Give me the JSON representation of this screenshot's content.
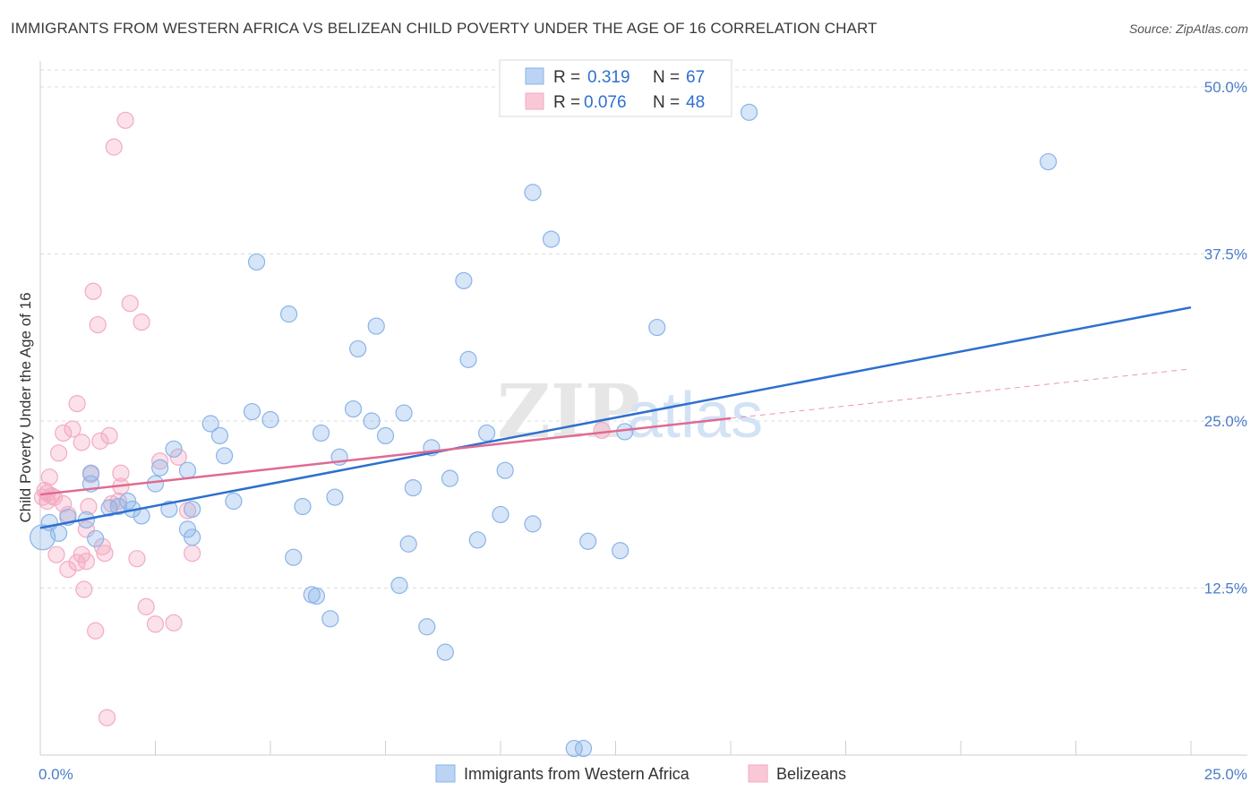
{
  "chart_data": {
    "type": "scatter",
    "title": "IMMIGRANTS FROM WESTERN AFRICA VS BELIZEAN CHILD POVERTY UNDER THE AGE OF 16 CORRELATION CHART",
    "source": "Source: ZipAtlas.com",
    "ylabel": "Child Poverty Under the Age of 16",
    "xlabel": "",
    "xlim": [
      0,
      25
    ],
    "ylim": [
      0,
      50
    ],
    "x_tick_labels": [
      "0.0%",
      "25.0%"
    ],
    "y_ticks": [
      12.5,
      25.0,
      37.5,
      50.0
    ],
    "y_tick_labels": [
      "12.5%",
      "25.0%",
      "37.5%",
      "50.0%"
    ],
    "watermark": {
      "zip": "ZIP",
      "atlas": "atlas"
    },
    "legend": {
      "r_label": "R =",
      "n_label": "N =",
      "entries": [
        {
          "r": "0.319",
          "n": "67"
        },
        {
          "r": "0.076",
          "n": "48"
        }
      ]
    },
    "series": [
      {
        "name": "Immigrants from Western Africa",
        "color": "#8ab4e8",
        "line_color": "#2e6fcf",
        "trend": {
          "x": [
            0,
            25
          ],
          "y": [
            17.0,
            33.5
          ]
        },
        "points": [
          [
            0.05,
            16.3
          ],
          [
            0.2,
            17.4
          ],
          [
            0.4,
            16.6
          ],
          [
            0.6,
            17.8
          ],
          [
            1.0,
            17.6
          ],
          [
            1.5,
            18.5
          ],
          [
            2.0,
            18.4
          ],
          [
            2.2,
            17.9
          ],
          [
            1.2,
            16.2
          ],
          [
            1.1,
            21.1
          ],
          [
            1.1,
            20.3
          ],
          [
            1.9,
            19.0
          ],
          [
            2.5,
            20.3
          ],
          [
            2.8,
            18.4
          ],
          [
            2.9,
            22.9
          ],
          [
            2.6,
            21.5
          ],
          [
            3.2,
            21.3
          ],
          [
            3.3,
            18.4
          ],
          [
            3.3,
            16.3
          ],
          [
            3.7,
            24.8
          ],
          [
            3.9,
            23.9
          ],
          [
            4.0,
            22.4
          ],
          [
            4.2,
            19.0
          ],
          [
            4.6,
            25.7
          ],
          [
            5.0,
            25.1
          ],
          [
            4.7,
            36.9
          ],
          [
            5.4,
            33.0
          ],
          [
            5.5,
            14.8
          ],
          [
            5.9,
            12.0
          ],
          [
            5.7,
            18.6
          ],
          [
            6.0,
            11.9
          ],
          [
            6.1,
            24.1
          ],
          [
            6.3,
            10.2
          ],
          [
            6.4,
            19.3
          ],
          [
            6.5,
            22.3
          ],
          [
            6.8,
            25.9
          ],
          [
            6.9,
            30.4
          ],
          [
            7.2,
            25.0
          ],
          [
            7.3,
            32.1
          ],
          [
            7.5,
            23.9
          ],
          [
            7.8,
            12.7
          ],
          [
            7.9,
            25.6
          ],
          [
            8.0,
            15.8
          ],
          [
            8.1,
            20.0
          ],
          [
            8.4,
            9.6
          ],
          [
            8.5,
            23.0
          ],
          [
            8.8,
            7.7
          ],
          [
            8.9,
            20.7
          ],
          [
            9.2,
            35.5
          ],
          [
            9.3,
            29.6
          ],
          [
            9.5,
            16.1
          ],
          [
            9.7,
            24.1
          ],
          [
            10.0,
            18.0
          ],
          [
            10.1,
            21.3
          ],
          [
            10.7,
            17.3
          ],
          [
            10.7,
            42.1
          ],
          [
            11.1,
            38.6
          ],
          [
            11.6,
            0.5
          ],
          [
            11.8,
            0.5
          ],
          [
            11.9,
            16.0
          ],
          [
            12.6,
            15.3
          ],
          [
            12.7,
            24.2
          ],
          [
            13.4,
            32.0
          ],
          [
            15.4,
            48.1
          ],
          [
            21.9,
            44.4
          ],
          [
            3.2,
            16.9
          ],
          [
            1.7,
            18.6
          ]
        ]
      },
      {
        "name": "Belizeans",
        "color": "#f4aac1",
        "line_color": "#e06a92",
        "trend": {
          "x": [
            0,
            15
          ],
          "y": [
            19.5,
            25.2
          ]
        },
        "trend_ext": {
          "x": [
            15,
            25
          ],
          "y": [
            25.2,
            28.9
          ]
        },
        "points": [
          [
            0.05,
            19.3
          ],
          [
            0.1,
            19.8
          ],
          [
            0.15,
            19.0
          ],
          [
            0.2,
            20.8
          ],
          [
            0.3,
            19.3
          ],
          [
            0.35,
            15.0
          ],
          [
            0.4,
            22.6
          ],
          [
            0.5,
            18.8
          ],
          [
            0.5,
            24.1
          ],
          [
            0.6,
            13.9
          ],
          [
            0.6,
            18.0
          ],
          [
            0.7,
            24.4
          ],
          [
            0.8,
            26.3
          ],
          [
            0.8,
            14.4
          ],
          [
            0.9,
            15.0
          ],
          [
            0.9,
            23.4
          ],
          [
            0.95,
            12.4
          ],
          [
            1.0,
            16.9
          ],
          [
            1.0,
            14.5
          ],
          [
            1.05,
            18.6
          ],
          [
            1.1,
            21.0
          ],
          [
            1.15,
            34.7
          ],
          [
            1.25,
            32.2
          ],
          [
            1.2,
            9.3
          ],
          [
            1.3,
            23.5
          ],
          [
            1.35,
            15.6
          ],
          [
            1.4,
            15.1
          ],
          [
            1.45,
            2.8
          ],
          [
            1.5,
            23.9
          ],
          [
            1.6,
            45.5
          ],
          [
            1.7,
            19.0
          ],
          [
            1.75,
            21.1
          ],
          [
            1.75,
            20.1
          ],
          [
            1.85,
            47.5
          ],
          [
            1.95,
            33.8
          ],
          [
            2.1,
            14.7
          ],
          [
            2.2,
            32.4
          ],
          [
            2.3,
            11.1
          ],
          [
            2.5,
            9.8
          ],
          [
            2.6,
            22.0
          ],
          [
            2.9,
            9.9
          ],
          [
            3.0,
            22.3
          ],
          [
            3.2,
            18.3
          ],
          [
            3.3,
            15.1
          ],
          [
            0.15,
            19.6
          ],
          [
            0.25,
            19.4
          ],
          [
            12.2,
            24.3
          ],
          [
            1.55,
            18.8
          ]
        ]
      }
    ]
  }
}
